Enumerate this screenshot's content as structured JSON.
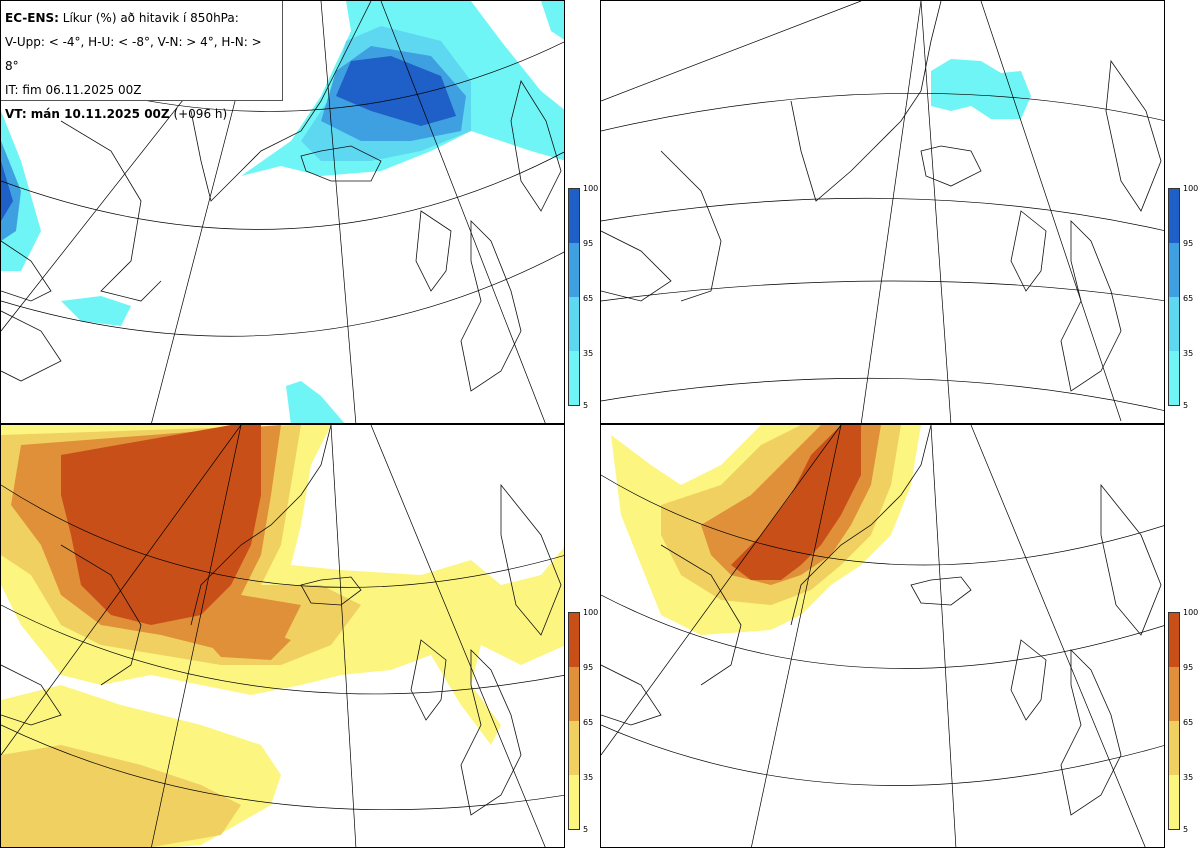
{
  "title": {
    "model": "EC-ENS:",
    "description": "Líkur (%) að hitavik í 850hPa:",
    "thresholds": "V-Upp: < -4°, H-U: < -8°, V-N: > 4°, H-N: > 8°",
    "initial_time": "IT: fim 06.11.2025 00Z",
    "valid_label": "VT: mán 10.11.2025 00Z",
    "lead_time": "(+096 h)"
  },
  "colorbar_ticks": [
    "100",
    "95",
    "65",
    "35",
    "5"
  ],
  "cold_colors": [
    "#6ff5f5",
    "#5ed8f0",
    "#3ea0e0",
    "#1f5fc8"
  ],
  "warm_colors": [
    "#fcf580",
    "#f0d060",
    "#e09038",
    "#c85018"
  ],
  "panels": [
    {
      "name": "upper-left",
      "scheme": "cold"
    },
    {
      "name": "upper-right",
      "scheme": "cold"
    },
    {
      "name": "lower-left",
      "scheme": "warm"
    },
    {
      "name": "lower-right",
      "scheme": "warm"
    }
  ]
}
